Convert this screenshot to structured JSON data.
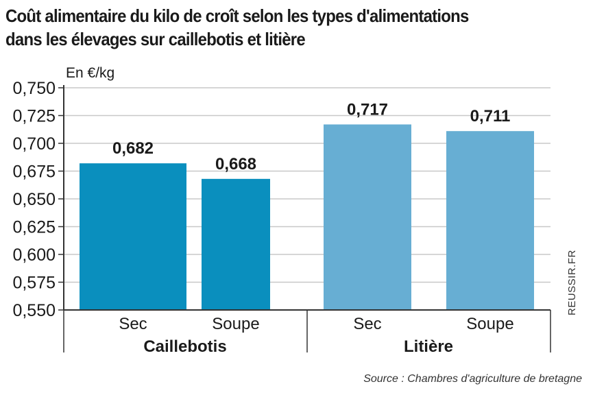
{
  "title": {
    "line1": "Coût alimentaire du kilo de croît selon les types d'alimentations",
    "line2": "dans les élevages sur caillebotis et litière"
  },
  "unit_label": "En €/kg",
  "source": "Source : Chambres d'agriculture de bretagne",
  "brand": "REUSSIR.FR",
  "colors": {
    "caillebotis": "#0a8fbe",
    "litiere": "#67aed3",
    "grid": "#c8c8c8",
    "axis": "#333333"
  },
  "chart_data": {
    "type": "bar",
    "ylabel": "En €/kg",
    "ylim": [
      0.55,
      0.75
    ],
    "yticks": [
      "0,550",
      "0,575",
      "0,600",
      "0,625",
      "0,650",
      "0,675",
      "0,700",
      "0,725",
      "0,750"
    ],
    "ytick_values": [
      0.55,
      0.575,
      0.6,
      0.625,
      0.65,
      0.675,
      0.7,
      0.725,
      0.75
    ],
    "grid": true,
    "groups": [
      {
        "name": "Caillebotis",
        "color_key": "caillebotis",
        "bars": [
          {
            "category": "Sec",
            "value": 0.682,
            "label": "0,682"
          },
          {
            "category": "Soupe",
            "value": 0.668,
            "label": "0,668"
          }
        ]
      },
      {
        "name": "Litière",
        "color_key": "litiere",
        "bars": [
          {
            "category": "Sec",
            "value": 0.717,
            "label": "0,717"
          },
          {
            "category": "Soupe",
            "value": 0.711,
            "label": "0,711"
          }
        ]
      }
    ]
  }
}
